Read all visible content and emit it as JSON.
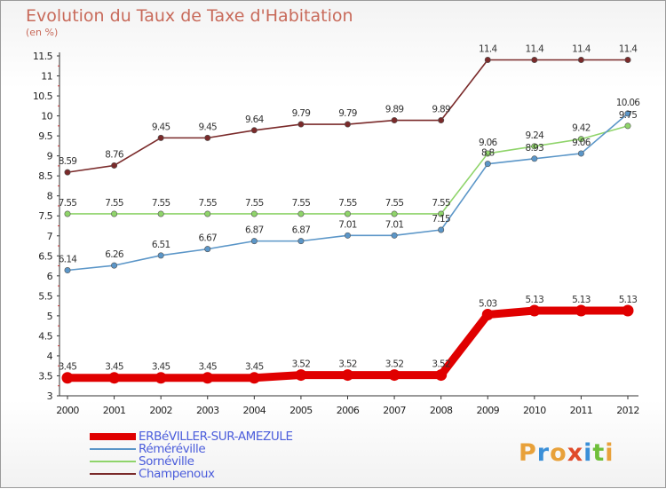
{
  "chart_data": {
    "type": "line",
    "title": "Evolution du Taux de Taxe d'Habitation",
    "ylabel": "(en %)",
    "xlabel": "",
    "categories": [
      "2000",
      "2001",
      "2002",
      "2003",
      "2004",
      "2005",
      "2006",
      "2007",
      "2008",
      "2009",
      "2010",
      "2011",
      "2012"
    ],
    "ylim": [
      3,
      11.5
    ],
    "yticks": [
      "3",
      "3.5",
      "4",
      "4.5",
      "5",
      "5.5",
      "6",
      "6.5",
      "7",
      "7.5",
      "8",
      "8.5",
      "9",
      "9.5",
      "10",
      "10.5",
      "11",
      "11.5"
    ],
    "grid": false,
    "legend_position": "bottom-left",
    "series": [
      {
        "name": "ERBéVILLER-SUR-AMEZULE",
        "color": "#e00000",
        "values": [
          3.45,
          3.45,
          3.45,
          3.45,
          3.45,
          3.52,
          3.52,
          3.52,
          3.52,
          5.03,
          5.13,
          5.13,
          5.13
        ],
        "labels": [
          "3.45",
          "3.45",
          "3.45",
          "3.45",
          "3.45",
          "3.52",
          "3.52",
          "3.52",
          "3.52",
          "5.03",
          "5.13",
          "5.13",
          "5.13"
        ]
      },
      {
        "name": "Réméréville",
        "color": "#5b96c8",
        "values": [
          6.14,
          6.26,
          6.51,
          6.67,
          6.87,
          6.87,
          7.01,
          7.01,
          7.15,
          8.8,
          8.93,
          9.06,
          10.06
        ],
        "labels": [
          "6.14",
          "6.26",
          "6.51",
          "6.67",
          "6.87",
          "6.87",
          "7.01",
          "7.01",
          "7.15",
          "8.8",
          "8.93",
          "9.06",
          "10.06"
        ]
      },
      {
        "name": "Sornéville",
        "color": "#8fd46a",
        "values": [
          7.55,
          7.55,
          7.55,
          7.55,
          7.55,
          7.55,
          7.55,
          7.55,
          7.55,
          9.06,
          9.24,
          9.42,
          9.75
        ],
        "labels": [
          "7.55",
          "7.55",
          "7.55",
          "7.55",
          "7.55",
          "7.55",
          "7.55",
          "7.55",
          "7.55",
          "9.06",
          "9.24",
          "9.42",
          "9.75"
        ]
      },
      {
        "name": "Champenoux",
        "color": "#7a2a2a",
        "values": [
          8.59,
          8.76,
          9.45,
          9.45,
          9.64,
          9.79,
          9.79,
          9.89,
          9.89,
          11.4,
          11.4,
          11.4,
          11.4
        ],
        "labels": [
          "8.59",
          "8.76",
          "9.45",
          "9.45",
          "9.64",
          "9.79",
          "9.79",
          "9.89",
          "9.89",
          "11.4",
          "11.4",
          "11.4",
          "11.4"
        ]
      }
    ]
  },
  "logo": {
    "text": "Proxiti"
  }
}
